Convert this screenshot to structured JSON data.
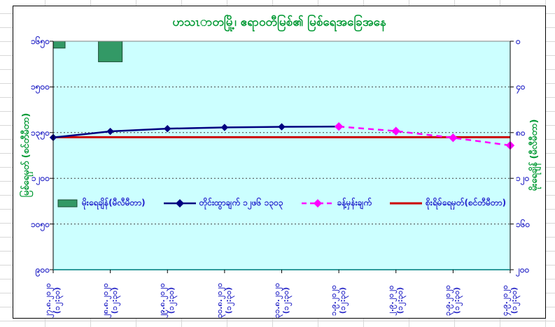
{
  "chart": {
    "title": "ဟသၤာတမြို့၊ ဧရာဝတီမြစ်၏ မြစ်ရေအခြေအနေ",
    "left_axis_title": "မြစ်ရေမှတ် (စင်တီမီတာ)",
    "right_axis_title": "မိုးရေချိန် (မီလီမီတာ)",
    "colors": {
      "plot_background": "#CCFFFF",
      "title_green": "#009933",
      "axis_label_blue": "#2B2BC8",
      "rainfall_bar_green": "#339966",
      "observed_navy": "#000080",
      "forecast_magenta": "#FF00FF",
      "danger_red": "#CC0000",
      "plot_top_border_gray": "#808080",
      "x_axis_teal": "#2E9B9B"
    }
  },
  "chart_data": {
    "type": "combo: bar + line + line + hline",
    "categories": [
      "၂၇.၈.၂၀၂၀",
      "၂၈.၈.၂၀၂၀",
      "၂၉.၈.၂၀၂၀",
      "၃၀.၈.၂၀၂၀",
      "၃၁.၈.၂၀၂၀",
      "၁.၉.၂၀၂၀",
      "၂.၉.၂၀၂၀",
      "၃.၉.၂၀၂၀",
      "၄.၉.၂၀၂၀"
    ],
    "category_time_sublabel": "(၁၂:၃၀)",
    "left_axis": {
      "range": [
        900,
        1650
      ],
      "tick_values": [
        1650,
        1500,
        1350,
        1200,
        1050,
        900
      ],
      "tick_labels": [
        "၁၆၅၀",
        "၁၅၀၀",
        "၁၃၅၀",
        "၁၂၀၀",
        "၁၀၅၀",
        "၉၀၀"
      ],
      "gridlines": [
        1500,
        1350,
        1200,
        1050
      ]
    },
    "right_axis": {
      "range": [
        0,
        200
      ],
      "inverted_zero_at_top": true,
      "tick_values": [
        0,
        40,
        80,
        120,
        160,
        200
      ],
      "tick_labels": [
        "၀",
        "၄၀",
        "၈၀",
        "၁၂၀",
        "၁၆၀",
        "၂၀၀"
      ]
    },
    "series": [
      {
        "name": "မိုးရေချိန်(မီလီမီတာ)",
        "type": "bar",
        "axis": "right",
        "color": "#339966",
        "values": [
          6,
          18,
          0,
          0,
          0,
          0,
          0,
          0,
          0
        ]
      },
      {
        "name": "တိုင်းထွာချက် ၁၂ဖ၆ ၁၃ဝ၃",
        "type": "line",
        "axis": "left",
        "color": "#000080",
        "marker": "diamond",
        "values": [
          1334,
          1354,
          1363,
          1367,
          1369,
          1370,
          null,
          null,
          null
        ]
      },
      {
        "name": "ခန့်မှန်းချက်",
        "type": "line-dashed",
        "axis": "left",
        "color": "#FF00FF",
        "marker": "diamond",
        "values": [
          null,
          null,
          null,
          null,
          null,
          1370,
          1355,
          1333,
          1308
        ]
      },
      {
        "name": "စိုးရိမ်ရေမှတ်(စင်တီမီတာ)",
        "type": "hline",
        "axis": "left",
        "color": "#CC0000",
        "value": 1335
      }
    ],
    "legend_position": "inside-middle"
  }
}
